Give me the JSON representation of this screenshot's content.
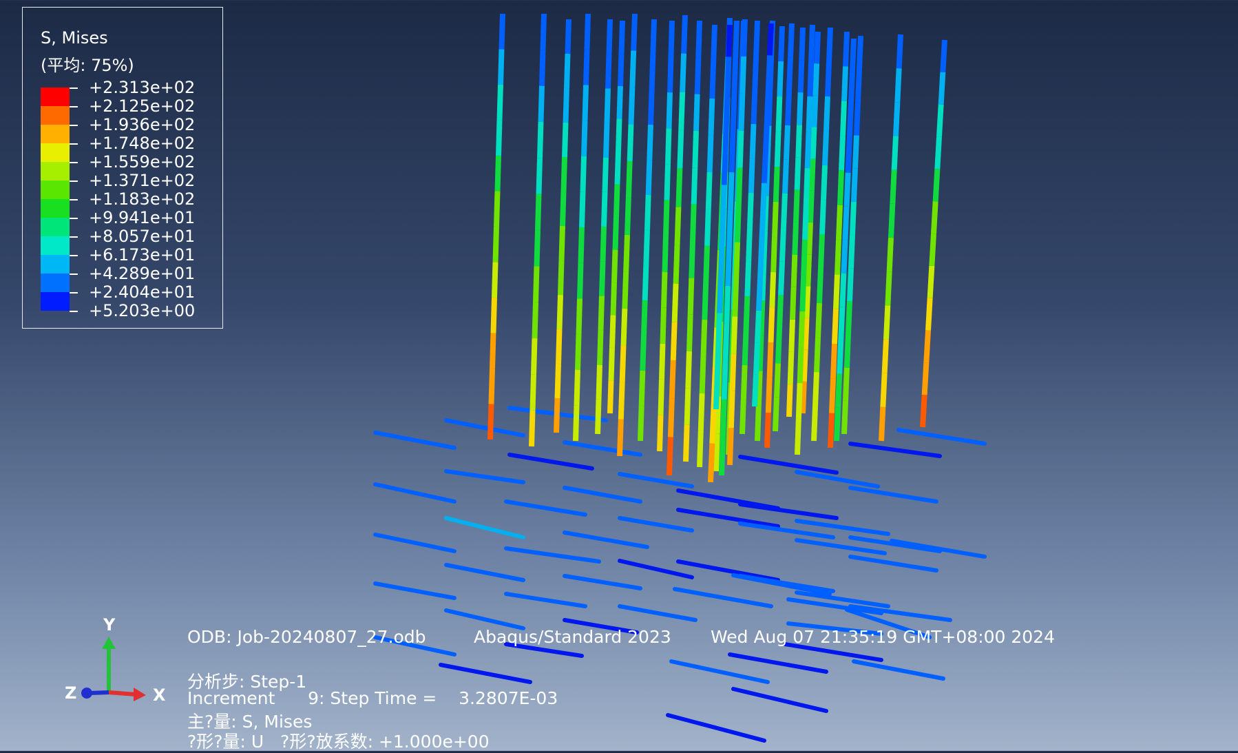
{
  "legend": {
    "title": "S, Mises",
    "subtitle": "(平均: 75%)",
    "colors": [
      "#ff0000",
      "#ff6a00",
      "#ffb000",
      "#e9ef00",
      "#a6ef00",
      "#5ae600",
      "#18e020",
      "#00e57a",
      "#00e8c8",
      "#00b7f5",
      "#0070ff",
      "#001cff"
    ],
    "labels": [
      "+2.313e+02",
      "+2.125e+02",
      "+1.936e+02",
      "+1.748e+02",
      "+1.559e+02",
      "+1.371e+02",
      "+1.183e+02",
      "+9.941e+01",
      "+8.057e+01",
      "+6.173e+01",
      "+4.289e+01",
      "+2.404e+01",
      "+5.203e+00"
    ]
  },
  "status": {
    "odb": "ODB: Job-20240807_27.odb",
    "solver": "Abaqus/Standard 2023",
    "date": "Wed Aug 07 21:35:19 GMT+08:00 2024",
    "step": "分析步: Step-1",
    "increment": "Increment      9: Step Time =    3.2807E-03",
    "primary": "主?量: S, Mises",
    "deformed": "?形?量: U   ?形?放系数: +1.000e+00"
  },
  "triad": {
    "x": "X",
    "y": "Y",
    "z": "Z"
  },
  "colors": {
    "bg_top": "#1c2a45",
    "bg_bottom": "#a2b3ca"
  }
}
